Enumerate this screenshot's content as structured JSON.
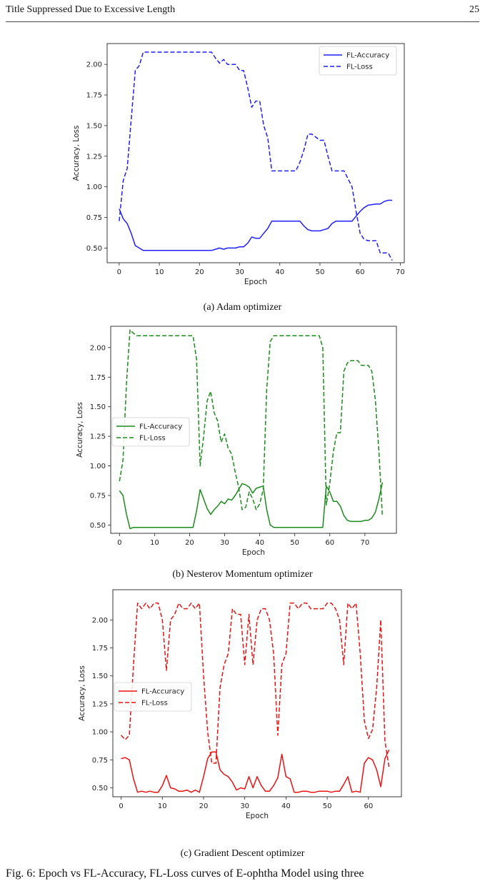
{
  "header": {
    "title": "Title Suppressed Due to Excessive Length",
    "page_number": "25"
  },
  "figure_caption": "Fig. 6: Epoch vs FL-Accuracy, FL-Loss curves of E-ophtha Model using three",
  "chart_data": [
    {
      "type": "line",
      "caption": "(a) Adam optimizer",
      "color": "#1f1fff",
      "xlabel": "Epoch",
      "ylabel": "Accuracy, Loss",
      "xlim": [
        -3,
        71
      ],
      "ylim": [
        0.38,
        2.17
      ],
      "xticks": [
        0,
        10,
        20,
        30,
        40,
        50,
        60,
        70
      ],
      "yticks": [
        "0.50",
        "0.75",
        "1.00",
        "1.25",
        "1.50",
        "1.75",
        "2.00"
      ],
      "legend": "top-right",
      "grid": false,
      "series": [
        {
          "name": "FL-Accuracy",
          "style": "solid",
          "x": [
            0,
            1,
            2,
            3,
            4,
            5,
            6,
            8,
            10,
            15,
            20,
            23,
            24,
            25,
            26,
            27,
            28,
            29,
            30,
            31,
            32,
            33,
            34,
            35,
            36,
            37,
            38,
            40,
            42,
            44,
            45,
            46,
            47,
            48,
            50,
            51,
            52,
            53,
            54,
            56,
            58,
            59,
            60,
            61,
            62,
            64,
            65,
            66,
            67,
            68
          ],
          "y": [
            0.82,
            0.74,
            0.7,
            0.62,
            0.52,
            0.5,
            0.48,
            0.48,
            0.48,
            0.48,
            0.48,
            0.48,
            0.49,
            0.5,
            0.49,
            0.5,
            0.5,
            0.5,
            0.51,
            0.51,
            0.54,
            0.59,
            0.58,
            0.58,
            0.62,
            0.66,
            0.72,
            0.72,
            0.72,
            0.72,
            0.72,
            0.68,
            0.65,
            0.64,
            0.64,
            0.65,
            0.66,
            0.7,
            0.72,
            0.72,
            0.72,
            0.76,
            0.8,
            0.83,
            0.85,
            0.86,
            0.86,
            0.88,
            0.89,
            0.89
          ]
        },
        {
          "name": "FL-Loss",
          "style": "dashed",
          "x": [
            0,
            1,
            2,
            3,
            4,
            5,
            6,
            8,
            10,
            15,
            20,
            22,
            23,
            24,
            25,
            26,
            27,
            28,
            29,
            30,
            31,
            32,
            33,
            34,
            35,
            36,
            37,
            38,
            40,
            42,
            44,
            45,
            46,
            47,
            48,
            50,
            51,
            52,
            53,
            54,
            56,
            58,
            59,
            60,
            61,
            62,
            63,
            64,
            65,
            66,
            67,
            68
          ],
          "y": [
            0.72,
            1.05,
            1.15,
            1.55,
            1.95,
            1.99,
            2.1,
            2.1,
            2.1,
            2.1,
            2.1,
            2.1,
            2.1,
            2.05,
            2.01,
            2.04,
            2.0,
            2.0,
            2.0,
            1.95,
            1.95,
            1.81,
            1.65,
            1.7,
            1.7,
            1.5,
            1.4,
            1.13,
            1.13,
            1.13,
            1.13,
            1.2,
            1.3,
            1.43,
            1.43,
            1.38,
            1.38,
            1.25,
            1.13,
            1.13,
            1.13,
            1.0,
            0.8,
            0.62,
            0.57,
            0.56,
            0.56,
            0.56,
            0.46,
            0.46,
            0.46,
            0.4
          ]
        }
      ]
    },
    {
      "type": "line",
      "caption": "(b) Nesterov Momentum optimizer",
      "color": "#1a8c1a",
      "xlabel": "Epoch",
      "ylabel": "Accuracy, Loss",
      "xlim": [
        -2.5,
        79
      ],
      "ylim": [
        0.43,
        2.18
      ],
      "xticks": [
        0,
        10,
        20,
        30,
        40,
        50,
        60,
        70
      ],
      "yticks": [
        "0.50",
        "0.75",
        "1.00",
        "1.25",
        "1.50",
        "1.75",
        "2.00"
      ],
      "legend": "center-left",
      "grid": false,
      "series": [
        {
          "name": "FL-Accuracy",
          "style": "solid",
          "x": [
            0,
            1,
            2,
            3,
            4,
            6,
            10,
            15,
            20,
            21,
            22,
            23,
            24,
            25,
            26,
            27,
            28,
            29,
            30,
            31,
            32,
            33,
            34,
            35,
            36,
            37,
            38,
            39,
            40,
            41,
            42,
            43,
            44,
            46,
            50,
            55,
            58,
            59,
            60,
            61,
            62,
            63,
            64,
            65,
            66,
            67,
            68,
            69,
            70,
            71,
            72,
            73,
            74,
            75
          ],
          "y": [
            0.79,
            0.75,
            0.59,
            0.47,
            0.48,
            0.48,
            0.48,
            0.48,
            0.48,
            0.48,
            0.62,
            0.8,
            0.72,
            0.64,
            0.59,
            0.63,
            0.66,
            0.7,
            0.68,
            0.72,
            0.71,
            0.75,
            0.8,
            0.85,
            0.84,
            0.82,
            0.77,
            0.81,
            0.82,
            0.83,
            0.63,
            0.5,
            0.48,
            0.48,
            0.48,
            0.48,
            0.48,
            0.83,
            0.78,
            0.7,
            0.7,
            0.66,
            0.58,
            0.54,
            0.53,
            0.53,
            0.53,
            0.53,
            0.54,
            0.54,
            0.56,
            0.61,
            0.72,
            0.86
          ]
        },
        {
          "name": "FL-Loss",
          "style": "dashed",
          "x": [
            0,
            1,
            2,
            3,
            4,
            5,
            10,
            15,
            20,
            21,
            22,
            23,
            24,
            25,
            26,
            27,
            28,
            29,
            30,
            31,
            32,
            33,
            34,
            35,
            36,
            37,
            38,
            39,
            40,
            41,
            42,
            43,
            44,
            46,
            50,
            55,
            57,
            58,
            59,
            60,
            61,
            62,
            63,
            64,
            65,
            66,
            67,
            68,
            69,
            70,
            71,
            72,
            73,
            74,
            75
          ],
          "y": [
            0.87,
            1.05,
            1.7,
            2.15,
            2.12,
            2.1,
            2.1,
            2.1,
            2.1,
            2.1,
            1.9,
            1.0,
            1.25,
            1.55,
            1.63,
            1.45,
            1.38,
            1.2,
            1.27,
            1.15,
            1.1,
            0.95,
            0.82,
            0.63,
            0.65,
            0.78,
            0.72,
            0.63,
            0.68,
            0.8,
            1.65,
            2.05,
            2.1,
            2.1,
            2.1,
            2.1,
            2.1,
            2.0,
            0.67,
            0.85,
            1.12,
            1.28,
            1.28,
            1.8,
            1.87,
            1.89,
            1.89,
            1.89,
            1.85,
            1.85,
            1.85,
            1.8,
            1.55,
            1.12,
            0.57
          ]
        }
      ]
    },
    {
      "type": "line",
      "caption": "(c) Gradient Descent optimizer",
      "color": "#ee1111",
      "xlabel": "Epoch",
      "ylabel": "Accuracy, Loss",
      "xlim": [
        -2,
        68
      ],
      "ylim": [
        0.42,
        2.27
      ],
      "xticks": [
        0,
        10,
        20,
        30,
        40,
        50,
        60
      ],
      "yticks": [
        "0.50",
        "0.75",
        "1.00",
        "1.25",
        "1.50",
        "1.75",
        "2.00"
      ],
      "legend": "center-left",
      "grid": false,
      "series": [
        {
          "name": "FL-Accuracy",
          "style": "solid",
          "x": [
            0,
            1,
            2,
            3,
            4,
            5,
            6,
            7,
            8,
            9,
            10,
            11,
            12,
            13,
            14,
            15,
            16,
            17,
            18,
            19,
            20,
            21,
            22,
            23,
            24,
            25,
            26,
            27,
            28,
            29,
            30,
            31,
            32,
            33,
            34,
            35,
            36,
            37,
            38,
            39,
            40,
            41,
            42,
            43,
            44,
            45,
            46,
            47,
            48,
            49,
            50,
            51,
            52,
            53,
            54,
            55,
            56,
            57,
            58,
            59,
            60,
            61,
            62,
            63,
            64,
            65
          ],
          "y": [
            0.76,
            0.77,
            0.75,
            0.58,
            0.46,
            0.47,
            0.46,
            0.47,
            0.46,
            0.46,
            0.52,
            0.61,
            0.5,
            0.49,
            0.47,
            0.47,
            0.48,
            0.46,
            0.48,
            0.46,
            0.6,
            0.76,
            0.82,
            0.82,
            0.66,
            0.62,
            0.6,
            0.55,
            0.48,
            0.5,
            0.49,
            0.6,
            0.5,
            0.6,
            0.52,
            0.47,
            0.47,
            0.52,
            0.59,
            0.8,
            0.6,
            0.58,
            0.46,
            0.46,
            0.47,
            0.47,
            0.46,
            0.46,
            0.47,
            0.47,
            0.47,
            0.46,
            0.47,
            0.47,
            0.53,
            0.6,
            0.46,
            0.47,
            0.46,
            0.72,
            0.77,
            0.75,
            0.66,
            0.51,
            0.76,
            0.84
          ]
        },
        {
          "name": "FL-Loss",
          "style": "dashed",
          "x": [
            0,
            1,
            2,
            3,
            4,
            5,
            6,
            7,
            8,
            9,
            10,
            11,
            12,
            13,
            14,
            15,
            16,
            17,
            18,
            19,
            20,
            21,
            22,
            23,
            24,
            25,
            26,
            27,
            28,
            29,
            30,
            31,
            32,
            33,
            34,
            35,
            36,
            37,
            38,
            39,
            40,
            41,
            42,
            43,
            44,
            45,
            46,
            47,
            48,
            49,
            50,
            51,
            52,
            53,
            54,
            55,
            56,
            57,
            58,
            59,
            60,
            61,
            62,
            63,
            64,
            65
          ],
          "y": [
            0.97,
            0.93,
            0.97,
            1.6,
            2.15,
            2.1,
            2.15,
            2.1,
            2.15,
            2.15,
            2.0,
            1.55,
            2.0,
            2.05,
            2.15,
            2.1,
            2.1,
            2.15,
            2.1,
            2.15,
            1.5,
            1.0,
            0.72,
            0.72,
            1.4,
            1.6,
            1.7,
            2.1,
            2.05,
            2.05,
            1.6,
            2.05,
            1.6,
            2.0,
            2.1,
            2.1,
            2.0,
            1.7,
            0.97,
            1.6,
            1.7,
            2.15,
            2.15,
            2.1,
            2.15,
            2.15,
            2.1,
            2.1,
            2.1,
            2.1,
            2.15,
            2.15,
            2.1,
            2.0,
            1.6,
            2.15,
            2.1,
            2.15,
            1.7,
            1.1,
            0.94,
            1.02,
            1.4,
            2.0,
            0.92,
            0.68
          ]
        }
      ]
    }
  ]
}
